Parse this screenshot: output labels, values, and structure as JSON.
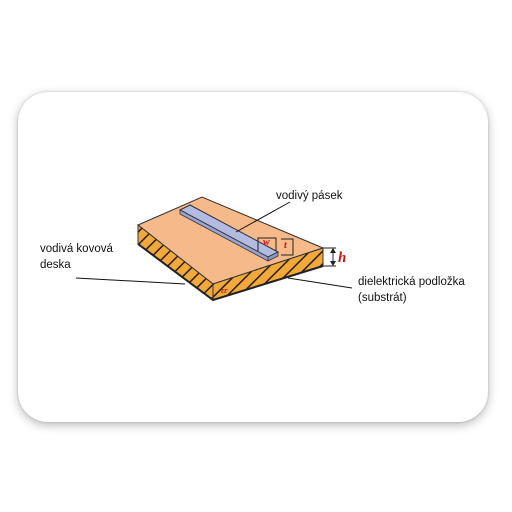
{
  "diagram": {
    "labels": {
      "strip": "vodivý pásek",
      "plate_line1": "vodivá kovová",
      "plate_line2": "deska",
      "substrate_line1": "dielektrická podložka",
      "substrate_line2": "(substrát)"
    },
    "symbols": {
      "width": "w",
      "thickness": "t",
      "height": "h",
      "permittivity": "εr"
    },
    "colors": {
      "substrate_top": "#F5B98A",
      "substrate_front": "#F2A93C",
      "hatch": "#2A1A10",
      "strip": "#B3BBE0",
      "symbol_red": "#C81414"
    }
  }
}
